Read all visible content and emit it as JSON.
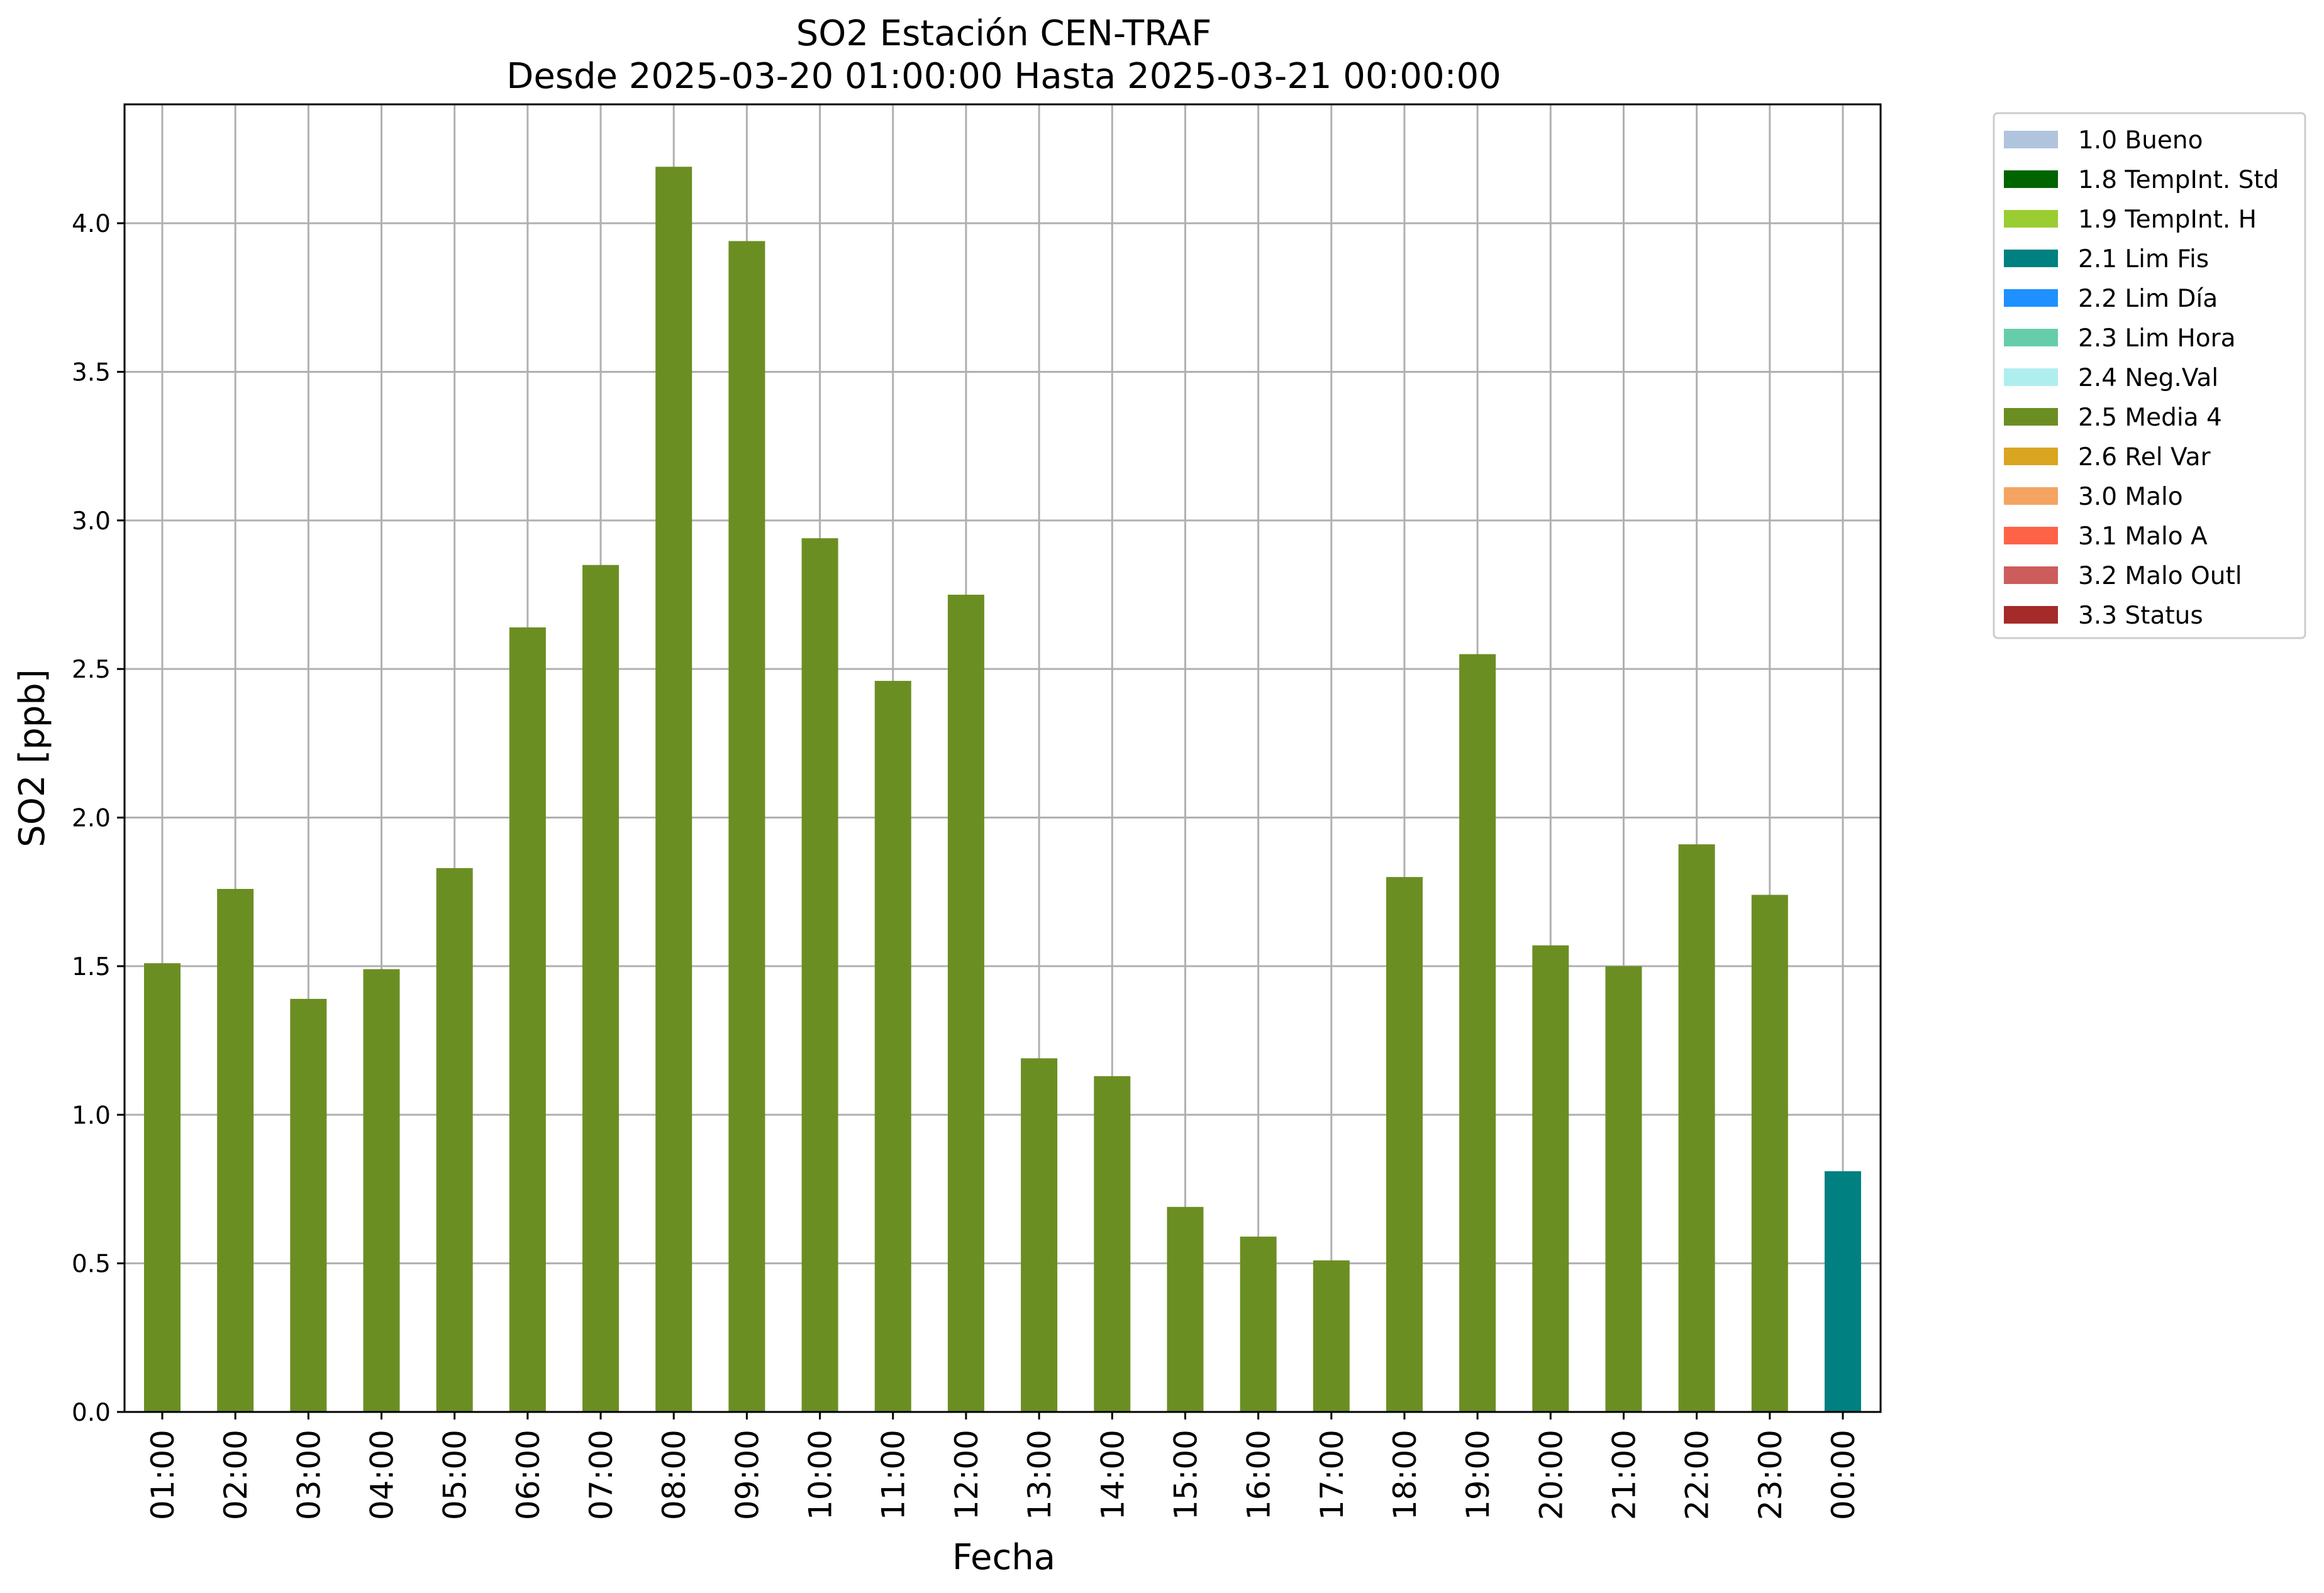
{
  "chart_data": {
    "type": "bar",
    "title": "SO2 Estación CEN-TRAF",
    "subtitle": "Desde 2025-03-20 01:00:00 Hasta 2025-03-21 00:00:00",
    "xlabel": "Fecha",
    "ylabel": "SO2 [ppb]",
    "ylim": [
      0,
      4.4
    ],
    "yticks": [
      "0.0",
      "0.5",
      "1.0",
      "1.5",
      "2.0",
      "2.5",
      "3.0",
      "3.5",
      "4.0"
    ],
    "grid": true,
    "legend_position": "outside top-right",
    "categories": [
      "01:00",
      "02:00",
      "03:00",
      "04:00",
      "05:00",
      "06:00",
      "07:00",
      "08:00",
      "09:00",
      "10:00",
      "11:00",
      "12:00",
      "13:00",
      "14:00",
      "15:00",
      "16:00",
      "17:00",
      "18:00",
      "19:00",
      "20:00",
      "21:00",
      "22:00",
      "23:00",
      "00:00"
    ],
    "values": [
      1.51,
      1.76,
      1.39,
      1.49,
      1.83,
      2.64,
      2.85,
      4.19,
      3.94,
      2.94,
      2.46,
      2.75,
      1.19,
      1.13,
      0.69,
      0.59,
      0.51,
      1.8,
      2.55,
      1.57,
      1.5,
      1.91,
      1.74,
      0.81
    ],
    "flags": [
      "2.5 Media 4",
      "2.5 Media 4",
      "2.5 Media 4",
      "2.5 Media 4",
      "2.5 Media 4",
      "2.5 Media 4",
      "2.5 Media 4",
      "2.5 Media 4",
      "2.5 Media 4",
      "2.5 Media 4",
      "2.5 Media 4",
      "2.5 Media 4",
      "2.5 Media 4",
      "2.5 Media 4",
      "2.5 Media 4",
      "2.5 Media 4",
      "2.5 Media 4",
      "2.5 Media 4",
      "2.5 Media 4",
      "2.5 Media 4",
      "2.5 Media 4",
      "2.5 Media 4",
      "2.5 Media 4",
      "2.1 Lim Fis"
    ],
    "legend": [
      {
        "label": "1.0 Bueno",
        "color": "#b0c4de"
      },
      {
        "label": "1.8 TempInt. Std",
        "color": "#006400"
      },
      {
        "label": "1.9 TempInt. H",
        "color": "#9acd32"
      },
      {
        "label": "2.1 Lim Fis",
        "color": "#008080"
      },
      {
        "label": "2.2 Lim Día",
        "color": "#1e90ff"
      },
      {
        "label": "2.3 Lim Hora",
        "color": "#66cdaa"
      },
      {
        "label": "2.4 Neg.Val",
        "color": "#afeeee"
      },
      {
        "label": "2.5 Media 4",
        "color": "#6b8e23"
      },
      {
        "label": "2.6 Rel Var",
        "color": "#daa520"
      },
      {
        "label": "3.0 Malo",
        "color": "#f4a460"
      },
      {
        "label": "3.1 Malo A",
        "color": "#ff6347"
      },
      {
        "label": "3.2 Malo Outl",
        "color": "#cd5c5c"
      },
      {
        "label": "3.3 Status",
        "color": "#a52a2a"
      }
    ]
  }
}
